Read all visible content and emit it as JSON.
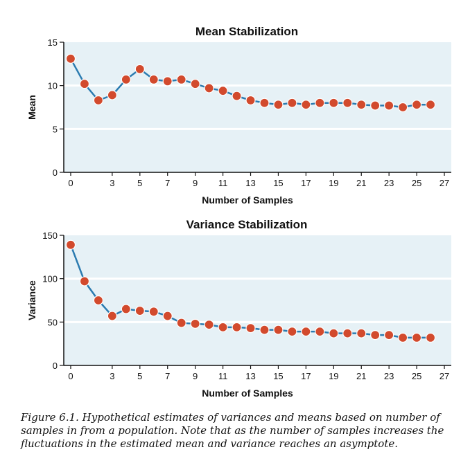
{
  "chart_data": [
    {
      "type": "line",
      "title": "Mean Stabilization",
      "xlabel": "Number of Samples",
      "ylabel": "Mean",
      "xlim": [
        -0.5,
        27.5
      ],
      "ylim": [
        0,
        15
      ],
      "yticks": [
        0,
        5,
        10,
        15
      ],
      "xticks": [
        "0",
        "3",
        "5",
        "7",
        "9",
        "11",
        "13",
        "15",
        "17",
        "19",
        "21",
        "23",
        "25",
        "27"
      ],
      "grid": "horizontal",
      "colors": {
        "line": "#2b7bb0",
        "marker": "#d24a2d",
        "background": "#e6f1f6"
      },
      "series": [
        {
          "x": [
            0,
            1,
            2,
            3,
            4,
            5,
            6,
            7,
            8,
            9,
            10,
            11,
            12,
            13,
            14,
            15,
            16,
            17,
            18,
            19,
            20,
            21,
            22,
            23,
            24,
            25,
            26
          ],
          "values": [
            13.1,
            10.2,
            8.3,
            8.9,
            10.7,
            11.9,
            10.7,
            10.5,
            10.7,
            10.2,
            9.7,
            9.4,
            8.8,
            8.3,
            8.0,
            7.8,
            8.0,
            7.8,
            8.0,
            8.0,
            8.0,
            7.8,
            7.7,
            7.7,
            7.5,
            7.8,
            7.8
          ]
        }
      ]
    },
    {
      "type": "line",
      "title": "Variance Stabilization",
      "xlabel": "Number of Samples",
      "ylabel": "Variance",
      "xlim": [
        -0.5,
        27.5
      ],
      "ylim": [
        0,
        150
      ],
      "yticks": [
        0,
        50,
        100,
        150
      ],
      "xticks": [
        "0",
        "3",
        "5",
        "7",
        "9",
        "11",
        "13",
        "15",
        "17",
        "19",
        "21",
        "23",
        "25",
        "27"
      ],
      "grid": "horizontal",
      "colors": {
        "line": "#2b7bb0",
        "marker": "#d24a2d",
        "background": "#e6f1f6"
      },
      "series": [
        {
          "x": [
            0,
            1,
            2,
            3,
            4,
            5,
            6,
            7,
            8,
            9,
            10,
            11,
            12,
            13,
            14,
            15,
            16,
            17,
            18,
            19,
            20,
            21,
            22,
            23,
            24,
            25,
            26
          ],
          "values": [
            139,
            97,
            75,
            57,
            65,
            63,
            62,
            57,
            49,
            48,
            47,
            44,
            44,
            43,
            41,
            41,
            39,
            39,
            39,
            37,
            37,
            37,
            35,
            35,
            32,
            32,
            32
          ]
        }
      ]
    }
  ],
  "caption": "Figure 6.1. Hypothetical estimates of variances and means based on number of samples in from a population. Note that as the number of samples increases the fluctuations in the estimated mean and variance reaches an asymptote."
}
